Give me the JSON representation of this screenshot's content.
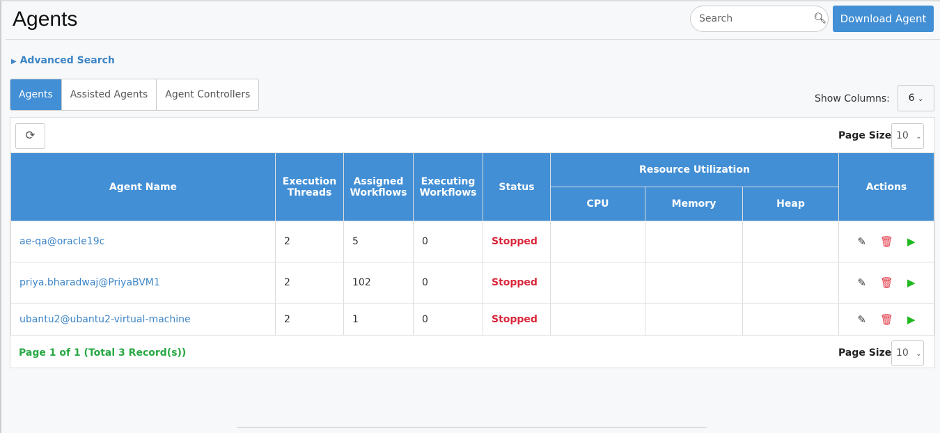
{
  "header": {
    "title": "Agents",
    "search_placeholder": "Search",
    "download_label": "Download Agent"
  },
  "advanced_search": "Advanced Search",
  "tabs": [
    {
      "label": "Agents",
      "active": true
    },
    {
      "label": "Assisted Agents"
    },
    {
      "label": "Agent Controllers"
    }
  ],
  "show_columns": {
    "label": "Show Columns:",
    "value": "6"
  },
  "page_size": {
    "label": "Page Size",
    "value": "10"
  },
  "table": {
    "headers": {
      "agent_name": "Agent Name",
      "execution_threads": "Execution Threads",
      "assigned_workflows": "Assigned Workflows",
      "executing_workflows": "Executing Workflows",
      "status": "Status",
      "resource_utilization": "Resource Utilization",
      "cpu": "CPU",
      "memory": "Memory",
      "heap": "Heap",
      "actions": "Actions"
    },
    "rows": [
      {
        "name": "ae-qa@oracle19c",
        "threads": "2",
        "assigned": "5",
        "executing": "0",
        "status": "Stopped",
        "cpu": "",
        "memory": "",
        "heap": ""
      },
      {
        "name": "priya.bharadwaj@PriyaBVM1",
        "threads": "2",
        "assigned": "102",
        "executing": "0",
        "status": "Stopped",
        "cpu": "",
        "memory": "",
        "heap": ""
      },
      {
        "name": "ubantu2@ubantu2-virtual-machine",
        "threads": "2",
        "assigned": "1",
        "executing": "0",
        "status": "Stopped",
        "cpu": "",
        "memory": "",
        "heap": ""
      }
    ]
  },
  "pagination": "Page 1 of 1 (Total 3 Record(s))",
  "colors": {
    "accent": "#428fd5",
    "stopped": "#d9263a",
    "pageinfo": "#27a844"
  }
}
